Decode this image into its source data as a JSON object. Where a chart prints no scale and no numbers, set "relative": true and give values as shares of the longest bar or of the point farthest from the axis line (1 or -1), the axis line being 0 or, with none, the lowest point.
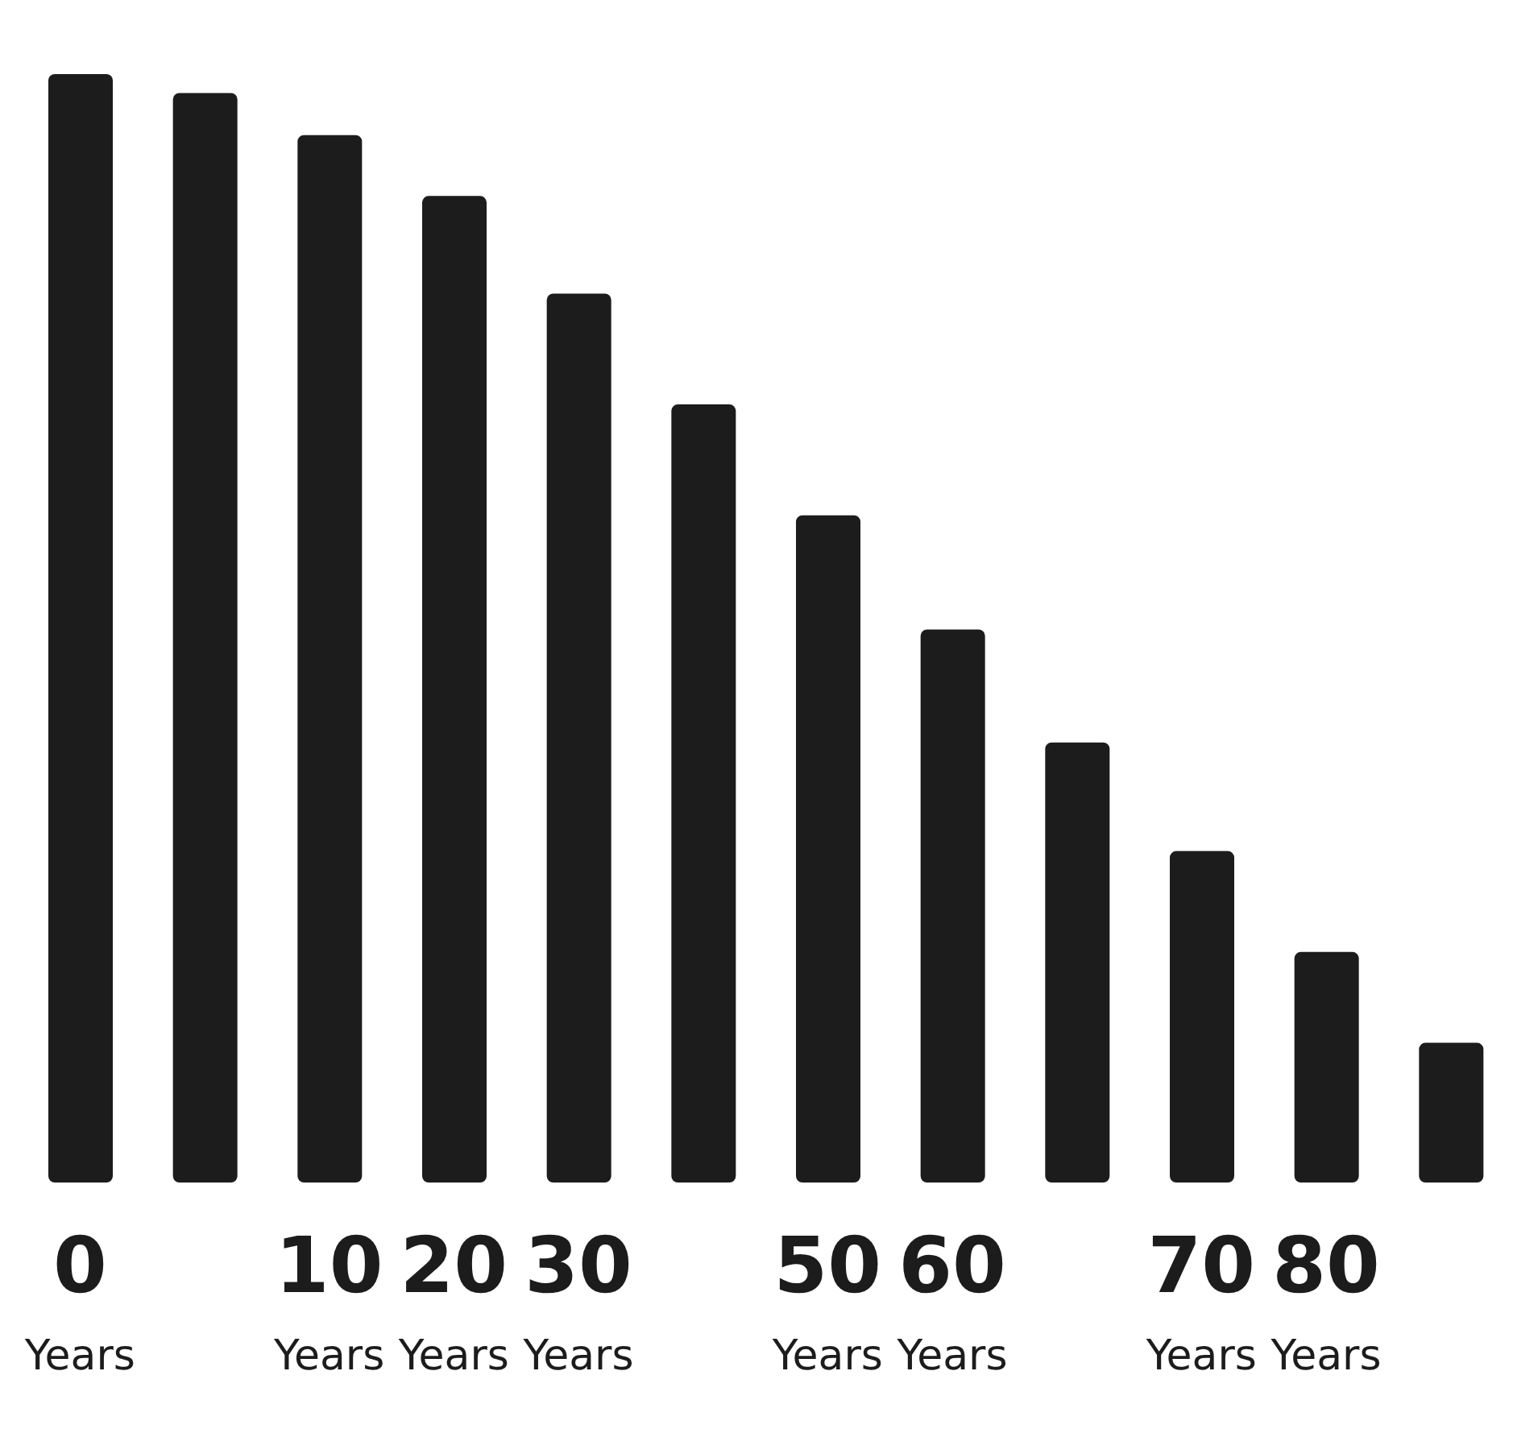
{
  "chart_data": {
    "type": "bar",
    "relative": true,
    "categories": [
      "0 Years",
      null,
      "10 Years",
      "20 Years",
      "30 Years",
      null,
      "50 Years",
      "60 Years",
      null,
      "70 Years",
      "80 Years",
      null
    ],
    "values": [
      1,
      0.983,
      0.945,
      0.89,
      0.802,
      0.702,
      0.602,
      0.499,
      0.397,
      0.299,
      0.208,
      0.126
    ],
    "color": "#1c1c1c",
    "grid": false,
    "legend": false
  }
}
